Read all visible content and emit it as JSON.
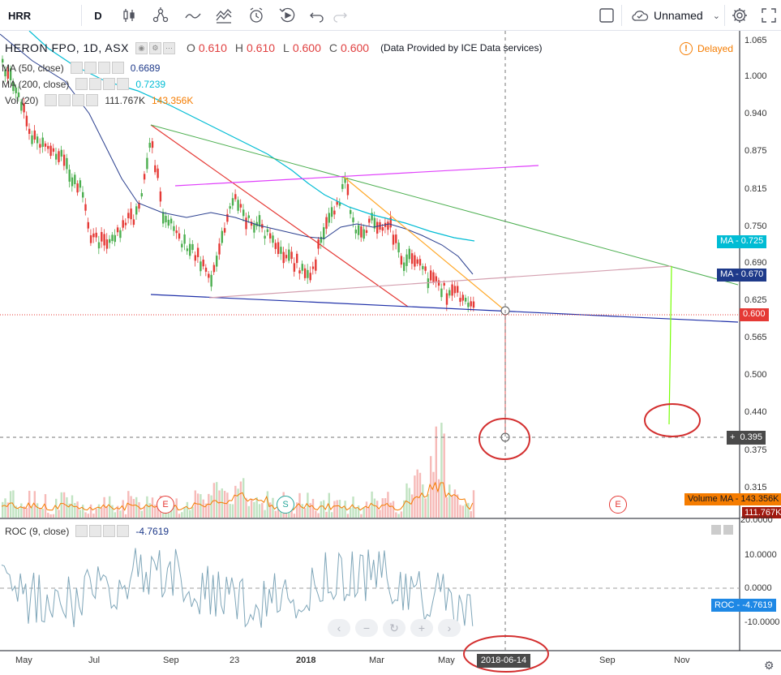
{
  "toolbar": {
    "symbol": "HRR",
    "interval": "D",
    "layout_name": "Unnamed"
  },
  "main_legend": {
    "symbol_desc": "HERON FPO, 1D, ASX",
    "open_label": "O",
    "open": "0.610",
    "high_label": "H",
    "high": "0.610",
    "low_label": "L",
    "low": "0.600",
    "close_label": "C",
    "close": "0.600",
    "provider": "(Data Provided by ICE Data services)"
  },
  "indicators": {
    "ma50": {
      "label": "MA (50, close)",
      "value": "0.6689",
      "color": "#1e3a8a"
    },
    "ma200": {
      "label": "MA (200, close)",
      "value": "0.7239",
      "color": "#00bcd4"
    },
    "vol": {
      "label": "Vol (20)",
      "value1": "111.767K",
      "value2": "143.356K"
    }
  },
  "status": {
    "delayed": "Delayed"
  },
  "price_axis": [
    "1.065",
    "1.000",
    "0.940",
    "0.875",
    "0.815",
    "0.750",
    "0.690",
    "0.625",
    "0.565",
    "0.500",
    "0.440",
    "0.375",
    "0.315"
  ],
  "price_tags": {
    "ma200": {
      "label": "MA",
      "value": "0.725"
    },
    "ma50": {
      "label": "MA",
      "value": "0.670"
    },
    "last": "0.600",
    "cursor": "0.395"
  },
  "volume_tags": {
    "vol_ma": "Volume MA",
    "vol_ma_value": "143.356K",
    "vol_value": "111.767K"
  },
  "roc": {
    "label": "ROC (9, close)",
    "value": "-4.7619",
    "tag_label": "ROC",
    "tag_value": "-4.7619",
    "axis": [
      "20.0000",
      "10.0000",
      "0.0000",
      "-10.0000"
    ]
  },
  "time_axis": [
    "May",
    "Jul",
    "Sep",
    "23",
    "2018",
    "Mar",
    "May",
    "Sep",
    "Nov"
  ],
  "crosshair_date": "2018-06-14",
  "events": {
    "earnings": "E",
    "split": "S"
  },
  "icons": {
    "bars": "candles-icon",
    "indicators": "fx-icon",
    "alert": "alarm-icon",
    "replay": "replay-icon",
    "undo": "undo-icon",
    "redo": "redo-icon",
    "settings": "gear-icon"
  }
}
